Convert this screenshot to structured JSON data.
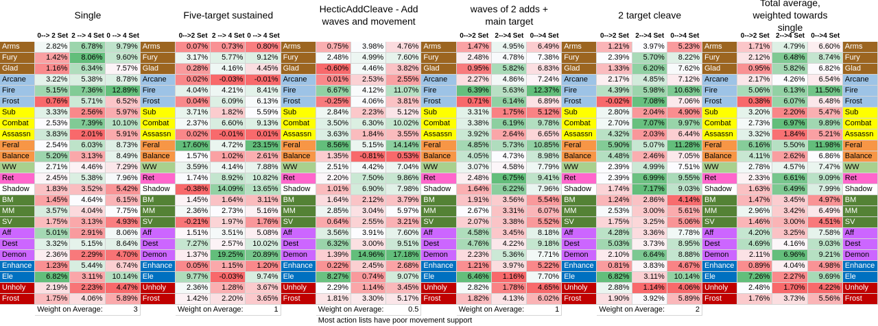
{
  "blocks": [
    {
      "title": "Single",
      "subheaders": [
        "0--> 2 Set",
        "2 --> 4 Set",
        "0 --> 4 Set"
      ],
      "weight_label": "Weight on Average:",
      "weight": 3
    },
    {
      "title": "Five-target sustained",
      "subheaders": [
        "0-->2 Set",
        "2 --> 4 Set",
        "0 --> 4 Set"
      ],
      "weight_label": "Weight on Average:",
      "weight": 1
    },
    {
      "title": "HecticAddCleave - Add waves and movement",
      "weight_label": "Weight on Average:",
      "weight": 0.5
    },
    {
      "title": "waves of 2 adds + main target",
      "subheaders": [
        "0-->2 Set",
        "2-->4 Set",
        "0-->4 Set"
      ],
      "weight_label": "Weight on Average:",
      "weight": 1
    },
    {
      "title": "2 target cleave",
      "subheaders": [
        "0-->2 Set",
        "2-->4 Set",
        "0-->4 Set"
      ],
      "weight_label": "Weight on Average:",
      "weight": 2
    },
    {
      "title": "Total average, weighted towards single",
      "subheaders": [
        "0-->2 Set",
        "2-->4 Set",
        "0-->4 Set"
      ]
    }
  ],
  "rows": [
    {
      "spec": "Arms",
      "color": "#9c6520",
      "cells": [
        "2.82%",
        "6.78%",
        "9.79%",
        "0.07%",
        "0.73%",
        "0.80%",
        "0.75%",
        "3.98%",
        "4.76%",
        "1.47%",
        "4.95%",
        "6.49%",
        "1.21%",
        "3.97%",
        "5.23%",
        "1.71%",
        "4.79%",
        "6.60%"
      ]
    },
    {
      "spec": "Fury",
      "color": "#9c6520",
      "cells": [
        "1.42%",
        "8.06%",
        "9.60%",
        "3.17%",
        "5.77%",
        "9.12%",
        "2.48%",
        "4.99%",
        "7.60%",
        "2.48%",
        "4.78%",
        "7.38%",
        "2.39%",
        "5.70%",
        "8.22%",
        "2.12%",
        "6.48%",
        "8.74%"
      ]
    },
    {
      "spec": "Glad",
      "color": "#9c6520",
      "cells": [
        "1.16%",
        "6.34%",
        "7.57%",
        "0.28%",
        "4.16%",
        "4.45%",
        "-0.60%",
        "4.46%",
        "3.82%",
        "0.95%",
        "5.82%",
        "6.83%",
        "1.33%",
        "6.20%",
        "7.62%",
        "0.95%",
        "5.82%",
        "6.82%"
      ]
    },
    {
      "spec": "Arcane",
      "color": "#9dc3e6",
      "cells": [
        "3.22%",
        "5.38%",
        "8.78%",
        "0.02%",
        "-0.03%",
        "-0.01%",
        "0.01%",
        "2.53%",
        "2.55%",
        "2.27%",
        "4.86%",
        "7.24%",
        "2.17%",
        "4.85%",
        "7.12%",
        "2.17%",
        "4.26%",
        "6.54%"
      ]
    },
    {
      "spec": "Fire",
      "color": "#9dc3e6",
      "cells": [
        "5.15%",
        "7.36%",
        "12.89%",
        "4.04%",
        "4.21%",
        "8.41%",
        "6.67%",
        "4.12%",
        "11.07%",
        "6.39%",
        "5.63%",
        "12.37%",
        "4.39%",
        "5.98%",
        "10.63%",
        "5.06%",
        "6.13%",
        "11.50%"
      ]
    },
    {
      "spec": "Frost",
      "color": "#9dc3e6",
      "cells": [
        "0.76%",
        "5.71%",
        "6.52%",
        "0.04%",
        "6.09%",
        "6.13%",
        "-0.25%",
        "4.06%",
        "3.81%",
        "0.71%",
        "6.14%",
        "6.89%",
        "-0.02%",
        "7.08%",
        "7.06%",
        "0.38%",
        "6.07%",
        "6.48%"
      ]
    },
    {
      "spec": "Sub",
      "color": "#ffff00",
      "cells": [
        "3.33%",
        "2.56%",
        "5.97%",
        "3.71%",
        "1.82%",
        "5.59%",
        "2.84%",
        "2.23%",
        "5.12%",
        "3.31%",
        "1.75%",
        "5.12%",
        "2.80%",
        "2.04%",
        "4.90%",
        "3.20%",
        "2.20%",
        "5.47%"
      ]
    },
    {
      "spec": "Combat",
      "color": "#ffff00",
      "cells": [
        "2.53%",
        "7.39%",
        "10.10%",
        "2.37%",
        "6.60%",
        "9.13%",
        "3.50%",
        "6.30%",
        "10.02%",
        "3.38%",
        "6.19%",
        "9.78%",
        "2.70%",
        "7.07%",
        "9.97%",
        "2.73%",
        "6.97%",
        "9.89%"
      ]
    },
    {
      "spec": "Assassn",
      "color": "#ffff00",
      "cells": [
        "3.83%",
        "2.01%",
        "5.91%",
        "0.02%",
        "-0.01%",
        "0.01%",
        "3.63%",
        "1.84%",
        "3.55%",
        "3.92%",
        "2.64%",
        "6.65%",
        "4.32%",
        "2.03%",
        "6.44%",
        "3.32%",
        "1.84%",
        "5.21%"
      ]
    },
    {
      "spec": "Feral",
      "color": "#f79646",
      "cells": [
        "2.54%",
        "6.03%",
        "8.73%",
        "17.60%",
        "4.72%",
        "23.15%",
        "8.56%",
        "5.15%",
        "14.14%",
        "4.85%",
        "5.73%",
        "10.85%",
        "5.90%",
        "5.07%",
        "11.28%",
        "6.16%",
        "5.50%",
        "11.98%"
      ]
    },
    {
      "spec": "Balance",
      "color": "#f79646",
      "cells": [
        "5.20%",
        "3.13%",
        "8.49%",
        "1.57%",
        "1.02%",
        "2.61%",
        "1.35%",
        "-0.81%",
        "0.53%",
        "4.05%",
        "4.73%",
        "8.98%",
        "4.48%",
        "2.46%",
        "7.05%",
        "4.11%",
        "2.62%",
        "6.86%"
      ]
    },
    {
      "spec": "WW",
      "color": "#a9d08e",
      "cells": [
        "2.71%",
        "4.46%",
        "7.29%",
        "3.59%",
        "4.14%",
        "7.88%",
        "2.51%",
        "4.42%",
        "7.04%",
        "3.07%",
        "4.58%",
        "7.79%",
        "2.39%",
        "4.99%",
        "7.51%",
        "2.78%",
        "4.57%",
        "7.47%"
      ]
    },
    {
      "spec": "Ret",
      "color": "#ff66cc",
      "cells": [
        "2.45%",
        "5.38%",
        "7.96%",
        "1.74%",
        "8.92%",
        "10.82%",
        "2.20%",
        "7.50%",
        "9.86%",
        "2.48%",
        "6.75%",
        "9.41%",
        "2.39%",
        "6.99%",
        "9.55%",
        "2.33%",
        "6.61%",
        "9.09%"
      ]
    },
    {
      "spec": "Shadow",
      "color": "#ffffff",
      "cells": [
        "1.83%",
        "3.52%",
        "5.42%",
        "-0.38%",
        "14.09%",
        "13.65%",
        "1.01%",
        "6.90%",
        "7.98%",
        "1.64%",
        "6.22%",
        "7.96%",
        "1.74%",
        "7.17%",
        "9.03%",
        "1.63%",
        "6.49%",
        "7.99%"
      ]
    },
    {
      "spec": "BM",
      "color": "#548235",
      "cells": [
        "1.45%",
        "4.64%",
        "6.15%",
        "1.45%",
        "1.64%",
        "3.11%",
        "1.64%",
        "2.12%",
        "3.79%",
        "1.91%",
        "3.56%",
        "5.54%",
        "1.24%",
        "2.86%",
        "4.14%",
        "1.47%",
        "3.45%",
        "4.97%"
      ]
    },
    {
      "spec": "MM",
      "color": "#548235",
      "cells": [
        "3.57%",
        "4.04%",
        "7.75%",
        "2.36%",
        "2.73%",
        "5.16%",
        "2.85%",
        "3.04%",
        "5.97%",
        "2.67%",
        "3.31%",
        "6.07%",
        "2.53%",
        "3.00%",
        "5.61%",
        "2.96%",
        "3.42%",
        "6.49%"
      ]
    },
    {
      "spec": "SV",
      "color": "#548235",
      "cells": [
        "1.75%",
        "3.13%",
        "4.93%",
        "-0.21%",
        "1.97%",
        "1.76%",
        "0.64%",
        "2.55%",
        "3.21%",
        "2.07%",
        "3.38%",
        "5.52%",
        "1.75%",
        "3.25%",
        "5.06%",
        "1.46%",
        "3.00%",
        "4.51%"
      ]
    },
    {
      "spec": "Aff",
      "color": "#cc66ff",
      "cells": [
        "5.01%",
        "2.91%",
        "8.06%",
        "1.51%",
        "3.51%",
        "5.08%",
        "3.56%",
        "3.91%",
        "7.60%",
        "4.58%",
        "3.45%",
        "8.18%",
        "4.28%",
        "3.36%",
        "7.78%",
        "4.20%",
        "3.25%",
        "7.58%"
      ]
    },
    {
      "spec": "Dest",
      "color": "#cc66ff",
      "cells": [
        "3.32%",
        "5.15%",
        "8.64%",
        "7.27%",
        "2.57%",
        "10.02%",
        "6.32%",
        "3.00%",
        "9.51%",
        "4.76%",
        "4.22%",
        "9.18%",
        "5.03%",
        "3.73%",
        "8.95%",
        "4.69%",
        "4.16%",
        "9.03%"
      ]
    },
    {
      "spec": "Demon",
      "color": "#cc66ff",
      "cells": [
        "2.36%",
        "2.29%",
        "4.70%",
        "1.37%",
        "19.25%",
        "20.89%",
        "1.39%",
        "14.96%",
        "17.18%",
        "2.23%",
        "5.36%",
        "7.71%",
        "2.10%",
        "6.64%",
        "8.88%",
        "2.11%",
        "6.96%",
        "9.21%"
      ]
    },
    {
      "spec": "Enhance",
      "color": "#0070c0",
      "cells": [
        "1.23%",
        "5.44%",
        "6.74%",
        "0.05%",
        "1.15%",
        "1.20%",
        "0.22%",
        "2.45%",
        "2.68%",
        "1.21%",
        "3.97%",
        "5.22%",
        "0.81%",
        "3.83%",
        "4.67%",
        "0.89%",
        "4.04%",
        "4.98%"
      ]
    },
    {
      "spec": "Ele",
      "color": "#0070c0",
      "cells": [
        "6.82%",
        "3.11%",
        "10.14%",
        "9.77%",
        "-0.03%",
        "9.74%",
        "8.27%",
        "0.74%",
        "9.07%",
        "6.46%",
        "1.16%",
        "7.70%",
        "6.82%",
        "3.11%",
        "10.14%",
        "7.26%",
        "2.27%",
        "9.69%"
      ]
    },
    {
      "spec": "Unholy",
      "color": "#c00000",
      "cells": [
        "2.19%",
        "2.23%",
        "4.47%",
        "2.36%",
        "1.28%",
        "3.67%",
        "2.29%",
        "1.14%",
        "3.45%",
        "2.82%",
        "1.78%",
        "4.65%",
        "2.88%",
        "1.14%",
        "4.06%",
        "2.48%",
        "1.70%",
        "4.22%"
      ]
    },
    {
      "spec": "Frost",
      "color": "#c00000",
      "cells": [
        "1.75%",
        "4.06%",
        "5.89%",
        "1.42%",
        "2.20%",
        "3.65%",
        "1.81%",
        "3.30%",
        "5.17%",
        "1.82%",
        "4.13%",
        "6.02%",
        "1.90%",
        "3.92%",
        "5.89%",
        "1.76%",
        "3.73%",
        "5.56%"
      ]
    }
  ],
  "note": "Most action lists have poor movement support"
}
